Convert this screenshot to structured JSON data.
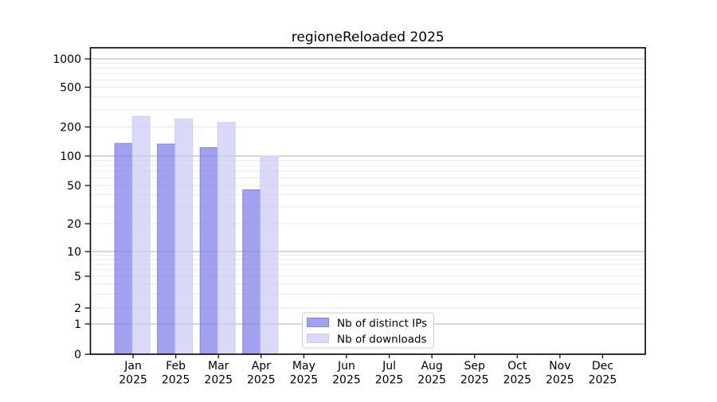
{
  "figure": {
    "background": "#ffffff",
    "title": "regioneReloaded 2025"
  },
  "chart_data": {
    "type": "bar",
    "title": "regioneReloaded 2025",
    "categories": [
      "Jan 2025",
      "Feb 2025",
      "Mar 2025",
      "Apr 2025",
      "May 2025",
      "Jun 2025",
      "Jul 2025",
      "Aug 2025",
      "Sep 2025",
      "Oct 2025",
      "Nov 2025",
      "Dec 2025"
    ],
    "x_tick_month_labels": [
      "Jan",
      "Feb",
      "Mar",
      "Apr",
      "May",
      "Jun",
      "Jul",
      "Aug",
      "Sep",
      "Oct",
      "Nov",
      "Dec"
    ],
    "x_tick_year_label": "2025",
    "series": [
      {
        "name": "Nb of distinct IPs",
        "color": "#a1a1ef",
        "fill_rgba": "rgba(121,121,232,0.7)",
        "edge_rgba": "rgba(121,121,232,0.9)",
        "values": [
          135,
          133,
          122,
          45,
          0,
          0,
          0,
          0,
          0,
          0,
          0,
          0
        ]
      },
      {
        "name": "Nb of downloads",
        "color": "#dadaf8",
        "fill_rgba": "rgba(202,202,245,0.7)",
        "edge_rgba": "rgba(202,202,245,0.9)",
        "values": [
          255,
          240,
          222,
          100,
          0,
          0,
          0,
          0,
          0,
          0,
          0,
          0
        ]
      }
    ],
    "y_axis": {
      "scale": "symlog",
      "tick_labels": [
        1000,
        500,
        200,
        100,
        50,
        20,
        10,
        5,
        2,
        1,
        0
      ],
      "ylim": [
        0,
        1300
      ]
    },
    "grid": {
      "major_values": [
        1,
        10,
        100,
        1000
      ],
      "major_color": "#b0b0b0",
      "minor_color": "#e9e9e9"
    },
    "legend": {
      "position": "inside-bottom-center",
      "entries": [
        "Nb of distinct IPs",
        "Nb of downloads"
      ]
    }
  }
}
